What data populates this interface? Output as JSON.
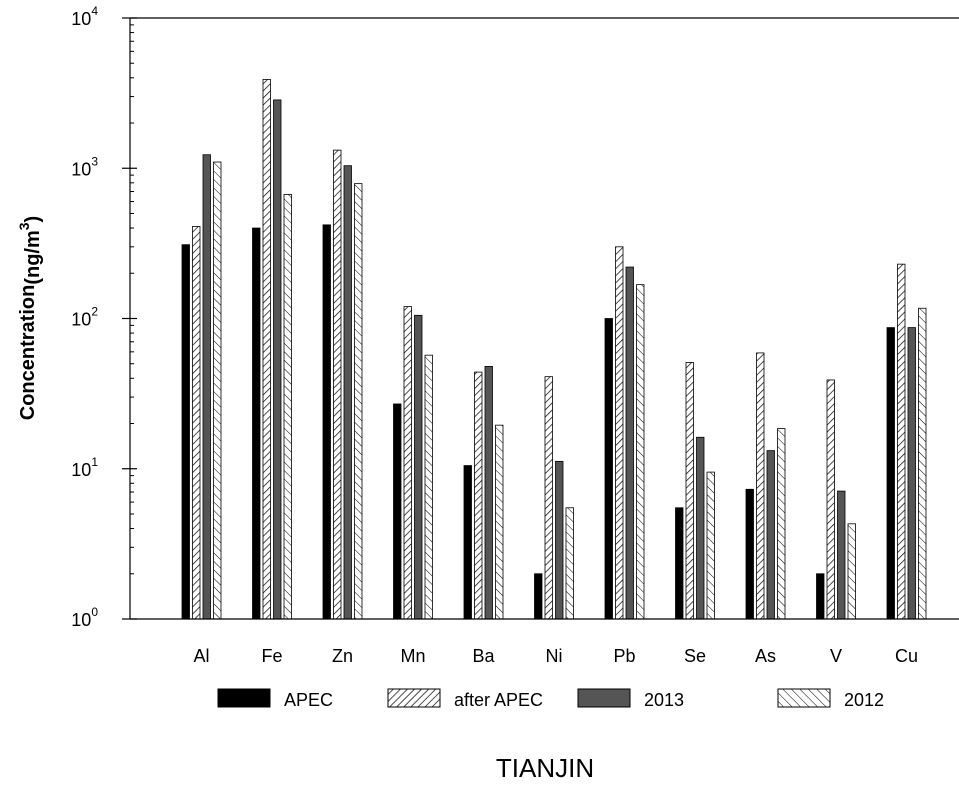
{
  "chart_data": {
    "type": "bar",
    "title": "",
    "xlabel": "",
    "ylabel": "Concentration",
    "ylabel_unit_prefix": "(ng/m",
    "ylabel_unit_exp": "3",
    "ylabel_unit_suffix": ")",
    "yscale": "log",
    "ylim": [
      1,
      10000
    ],
    "y_ticks": [
      {
        "base": "10",
        "exp": "0",
        "value": 1
      },
      {
        "base": "10",
        "exp": "1",
        "value": 10
      },
      {
        "base": "10",
        "exp": "2",
        "value": 100
      },
      {
        "base": "10",
        "exp": "3",
        "value": 1000
      },
      {
        "base": "10",
        "exp": "4",
        "value": 10000
      }
    ],
    "categories": [
      "Al",
      "Fe",
      "Zn",
      "Mn",
      "Ba",
      "Ni",
      "Pb",
      "Se",
      "As",
      "V",
      "Cu"
    ],
    "series": [
      {
        "name": "APEC",
        "fill": "solid-black",
        "values": [
          310,
          400,
          420,
          27,
          10.5,
          2.0,
          100,
          5.5,
          7.3,
          2.0,
          87
        ]
      },
      {
        "name": "after APEC",
        "fill": "hatch-forward",
        "values": [
          410,
          3900,
          1320,
          120,
          44,
          41,
          300,
          51,
          59,
          39,
          230
        ]
      },
      {
        "name": "2013",
        "fill": "solid-gray",
        "values": [
          1230,
          2850,
          1040,
          105,
          48,
          11.2,
          220,
          16.2,
          13.2,
          7.1,
          87
        ]
      },
      {
        "name": "2012",
        "fill": "hatch-backward",
        "values": [
          1100,
          670,
          790,
          57,
          19.5,
          5.5,
          168,
          9.5,
          18.5,
          4.3,
          117
        ]
      }
    ],
    "grid": false,
    "legend_position": "bottom"
  },
  "footer": {
    "caption": "TIANJIN"
  }
}
